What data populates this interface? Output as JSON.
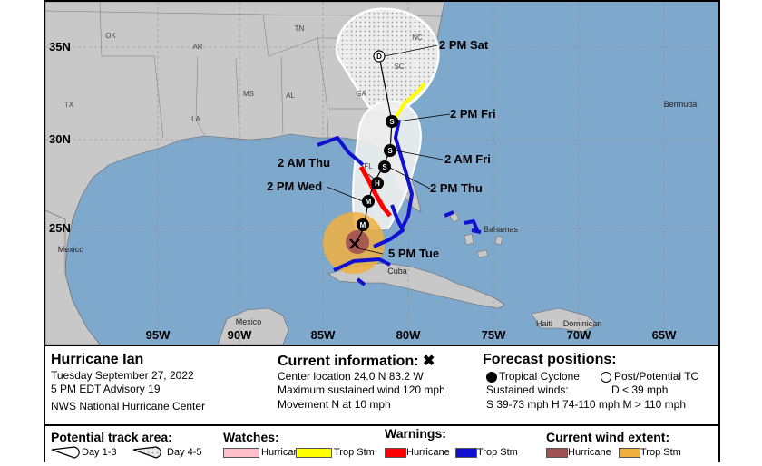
{
  "map": {
    "lat_labels": [
      "35N",
      "30N",
      "25N"
    ],
    "lon_labels": [
      "95W",
      "90W",
      "85W",
      "80W",
      "75W",
      "70W",
      "65W"
    ],
    "state_labels": [
      "OK",
      "AR",
      "TN",
      "NC",
      "SC",
      "GA",
      "MS",
      "AL",
      "LA",
      "TX",
      "FL"
    ],
    "place_labels": [
      "Mexico",
      "Cuba",
      "Bahamas",
      "Bermuda",
      "Mexico",
      "Haiti",
      "Dominican"
    ],
    "forecast_labels": [
      "2 PM Sat",
      "2 PM Fri",
      "2 AM Fri",
      "2 AM Thu",
      "2 PM Thu",
      "2 PM Wed",
      "5 PM Tue"
    ],
    "markers": [
      "D",
      "S",
      "S",
      "S",
      "H",
      "M",
      "M"
    ],
    "colors": {
      "water": "#7fa9cc",
      "land": "#c8c8c8",
      "hurricane_warning": "#ff0000",
      "trop_storm_warning": "#1010d0",
      "trop_storm_watch": "#ffff00",
      "hurricane_watch": "#ffc0cb",
      "hurricane_wind": "#a05050",
      "trop_storm_wind": "#f0b040"
    }
  },
  "info": {
    "storm_name": "Hurricane Ian",
    "date": "Tuesday September 27, 2022",
    "advisory": "5 PM EDT Advisory 19",
    "agency": "NWS National Hurricane Center",
    "current_title": "Current information:",
    "current_icon": "x-marker-icon",
    "center": "Center location 24.0 N 83.2 W",
    "max_winds": "Maximum sustained wind 120 mph",
    "movement": "Movement N at 10 mph",
    "forecast_title": "Forecast positions:",
    "tc_label": "Tropical Cyclone",
    "post_tc_label": "Post/Potential TC",
    "sustained_label": "Sustained winds:",
    "d_range": "D < 39 mph",
    "ranges": "S 39-73 mph  H 74-110 mph  M > 110 mph"
  },
  "legend": {
    "track_title": "Potential track area:",
    "day13": "Day 1-3",
    "day45": "Day 4-5",
    "watches_title": "Watches:",
    "watch_hurricane": "Hurricane",
    "watch_ts": "Trop Stm",
    "warnings_title": "Warnings:",
    "warn_hurricane": "Hurricane",
    "warn_ts": "Trop Stm",
    "wind_title": "Current wind extent:",
    "wind_hurricane": "Hurricane",
    "wind_ts": "Trop Stm"
  }
}
